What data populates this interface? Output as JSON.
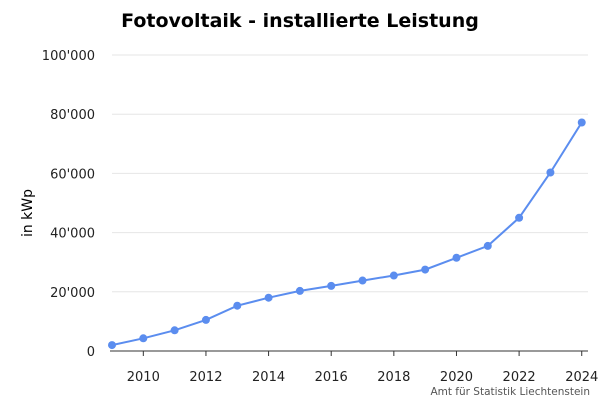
{
  "chart_data": {
    "type": "line",
    "title": "Fotovoltaik - installierte Leistung",
    "ylabel": "in kWp",
    "xlabel": "",
    "source": "Amt für Statistik Liechtenstein",
    "x": [
      2009,
      2010,
      2011,
      2012,
      2013,
      2014,
      2015,
      2016,
      2017,
      2018,
      2019,
      2020,
      2021,
      2022,
      2023,
      2024
    ],
    "series": [
      {
        "values": [
          2000,
          4300,
          7000,
          10500,
          15300,
          18000,
          20300,
          22000,
          23800,
          25500,
          27500,
          31500,
          35500,
          45000,
          60300,
          77200
        ]
      }
    ],
    "xlim": [
      2009,
      2024.2
    ],
    "ylim": [
      0,
      100000
    ],
    "x_ticks": [
      2010,
      2012,
      2014,
      2016,
      2018,
      2020,
      2022,
      2024
    ],
    "x_tick_labels": [
      "2010",
      "2012",
      "2014",
      "2016",
      "2018",
      "2020",
      "2022",
      "2024"
    ],
    "y_ticks": [
      0,
      20000,
      40000,
      60000,
      80000,
      100000
    ],
    "y_tick_labels": [
      "0",
      "20'000",
      "40'000",
      "60'000",
      "80'000",
      "100'000"
    ],
    "grid": true,
    "legend": "none",
    "colors": {
      "line": "#5b8def",
      "point": "#5b8def",
      "grid": "#e6e6e6"
    }
  }
}
